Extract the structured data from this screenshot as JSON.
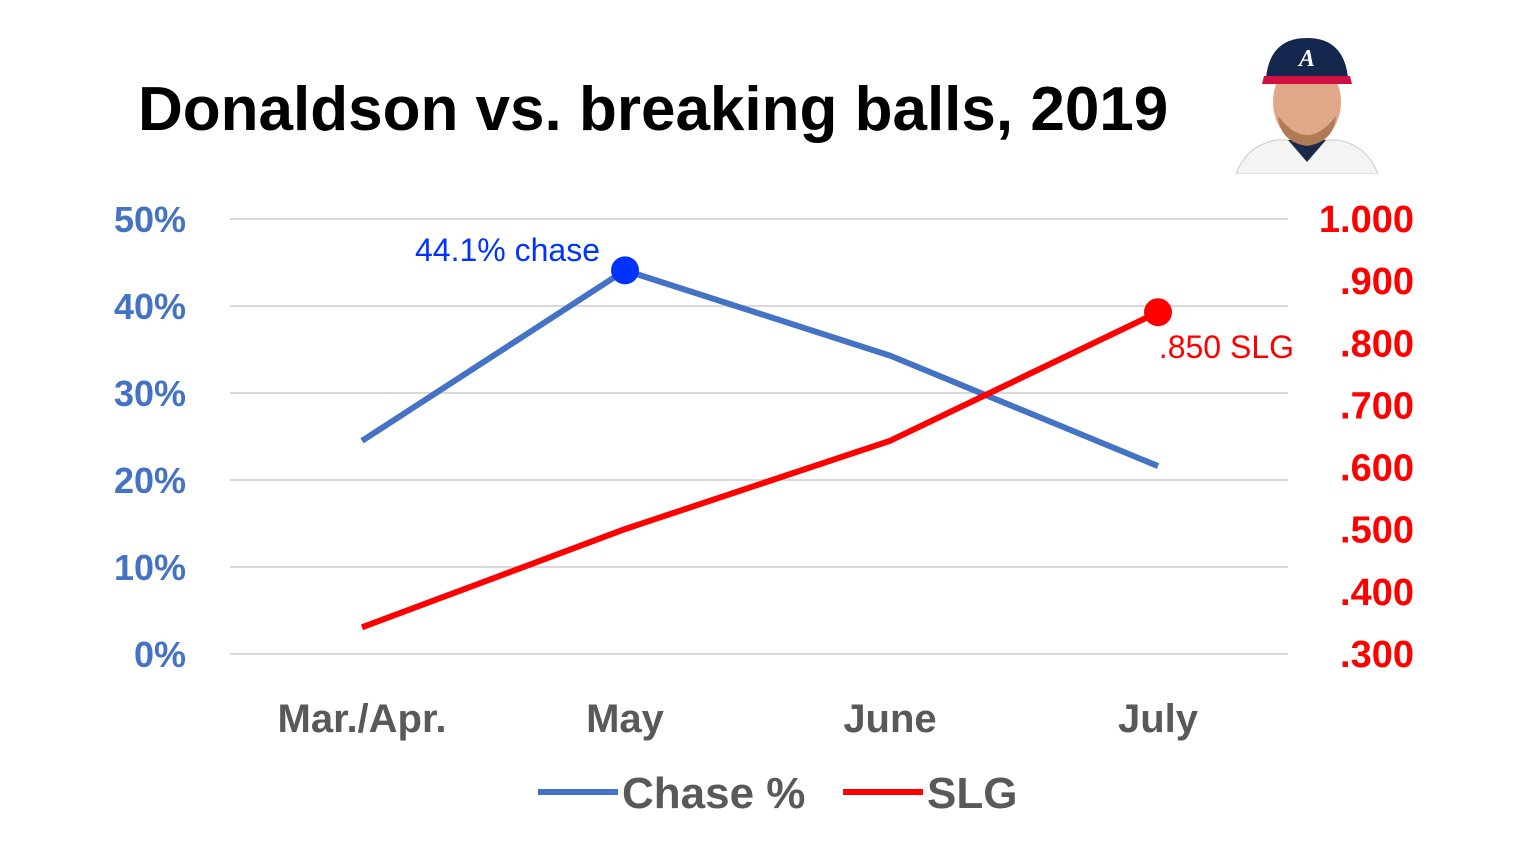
{
  "chart_data": {
    "type": "line",
    "title": "Donaldson vs. breaking balls, 2019",
    "categories": [
      "Mar./Apr.",
      "May",
      "June",
      "July"
    ],
    "y_left": {
      "ticks": [
        "0%",
        "10%",
        "20%",
        "30%",
        "40%",
        "50%"
      ],
      "range": [
        0,
        50
      ],
      "color": "#4472C4"
    },
    "y_right": {
      "ticks": [
        ".300",
        ".400",
        ".500",
        ".600",
        ".700",
        ".800",
        ".900",
        "1.000"
      ],
      "range": [
        0.3,
        1.0
      ],
      "color": "#FF0000"
    },
    "grid": true,
    "legend_position": "bottom",
    "series": [
      {
        "name": "Chase %",
        "axis": "left",
        "color": "#4472C4",
        "values": [
          24.5,
          44.1,
          34.3,
          21.6
        ]
      },
      {
        "name": "SLG",
        "axis": "right",
        "color": "#FF0000",
        "values": [
          0.343,
          0.501,
          0.643,
          0.85
        ]
      }
    ],
    "annotations": [
      {
        "text": "44.1% chase",
        "series": "Chase %",
        "category": "May",
        "color": "#0033FF"
      },
      {
        "text": ".850 SLG",
        "series": "SLG",
        "category": "July",
        "color": "#FF0000"
      }
    ]
  },
  "image": {
    "description_icon": "player-headshot"
  }
}
